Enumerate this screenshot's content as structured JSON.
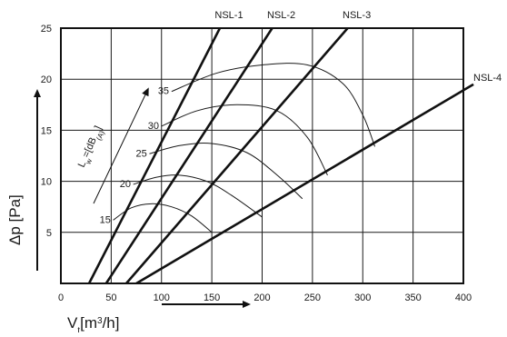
{
  "chart_data": {
    "type": "line",
    "xlabel": "V",
    "xlabel_subscript": "t",
    "xlabel_unit": "[m",
    "xlabel_unit_sup": "3",
    "xlabel_unit_tail": "/h]",
    "ylabel": "Δp [Pa]",
    "xlim": [
      0,
      400
    ],
    "ylim": [
      0,
      25
    ],
    "xticks": [
      0,
      50,
      100,
      150,
      200,
      250,
      300,
      350,
      400
    ],
    "yticks": [
      5,
      10,
      15,
      20,
      25
    ],
    "grid": true,
    "series": [
      {
        "name": "NSL-1",
        "points": [
          [
            28,
            0
          ],
          [
            158,
            25
          ]
        ]
      },
      {
        "name": "NSL-2",
        "points": [
          [
            45,
            0
          ],
          [
            210,
            25
          ]
        ]
      },
      {
        "name": "NSL-3",
        "points": [
          [
            65,
            0
          ],
          [
            285,
            25
          ]
        ]
      },
      {
        "name": "NSL-4",
        "points": [
          [
            75,
            0
          ],
          [
            410,
            19.5
          ]
        ]
      }
    ],
    "noise_curves": [
      {
        "label": "15",
        "points": [
          [
            52,
            6.2
          ],
          [
            70,
            7.4
          ],
          [
            90,
            7.8
          ],
          [
            110,
            7.5
          ],
          [
            130,
            6.6
          ],
          [
            150,
            5.0
          ]
        ]
      },
      {
        "label": "20",
        "points": [
          [
            72,
            9.7
          ],
          [
            95,
            10.4
          ],
          [
            118,
            10.6
          ],
          [
            145,
            10.0
          ],
          [
            170,
            8.6
          ],
          [
            200,
            6.5
          ]
        ]
      },
      {
        "label": "25",
        "points": [
          [
            88,
            12.7
          ],
          [
            118,
            13.5
          ],
          [
            150,
            13.7
          ],
          [
            185,
            12.8
          ],
          [
            215,
            10.6
          ],
          [
            240,
            8.3
          ]
        ]
      },
      {
        "label": "30",
        "points": [
          [
            100,
            15.4
          ],
          [
            135,
            16.9
          ],
          [
            175,
            17.5
          ],
          [
            215,
            16.9
          ],
          [
            245,
            14.3
          ],
          [
            265,
            10.6
          ]
        ]
      },
      {
        "label": "35",
        "points": [
          [
            110,
            18.8
          ],
          [
            155,
            20.6
          ],
          [
            200,
            21.4
          ],
          [
            245,
            21.4
          ],
          [
            280,
            19.6
          ],
          [
            300,
            16.5
          ],
          [
            312,
            13.4
          ]
        ]
      }
    ],
    "noise_param_label": "L",
    "noise_param_sub": "w",
    "noise_param_tail": "=[dB",
    "noise_param_tail_sub": "(A)",
    "noise_param_close": "]"
  }
}
